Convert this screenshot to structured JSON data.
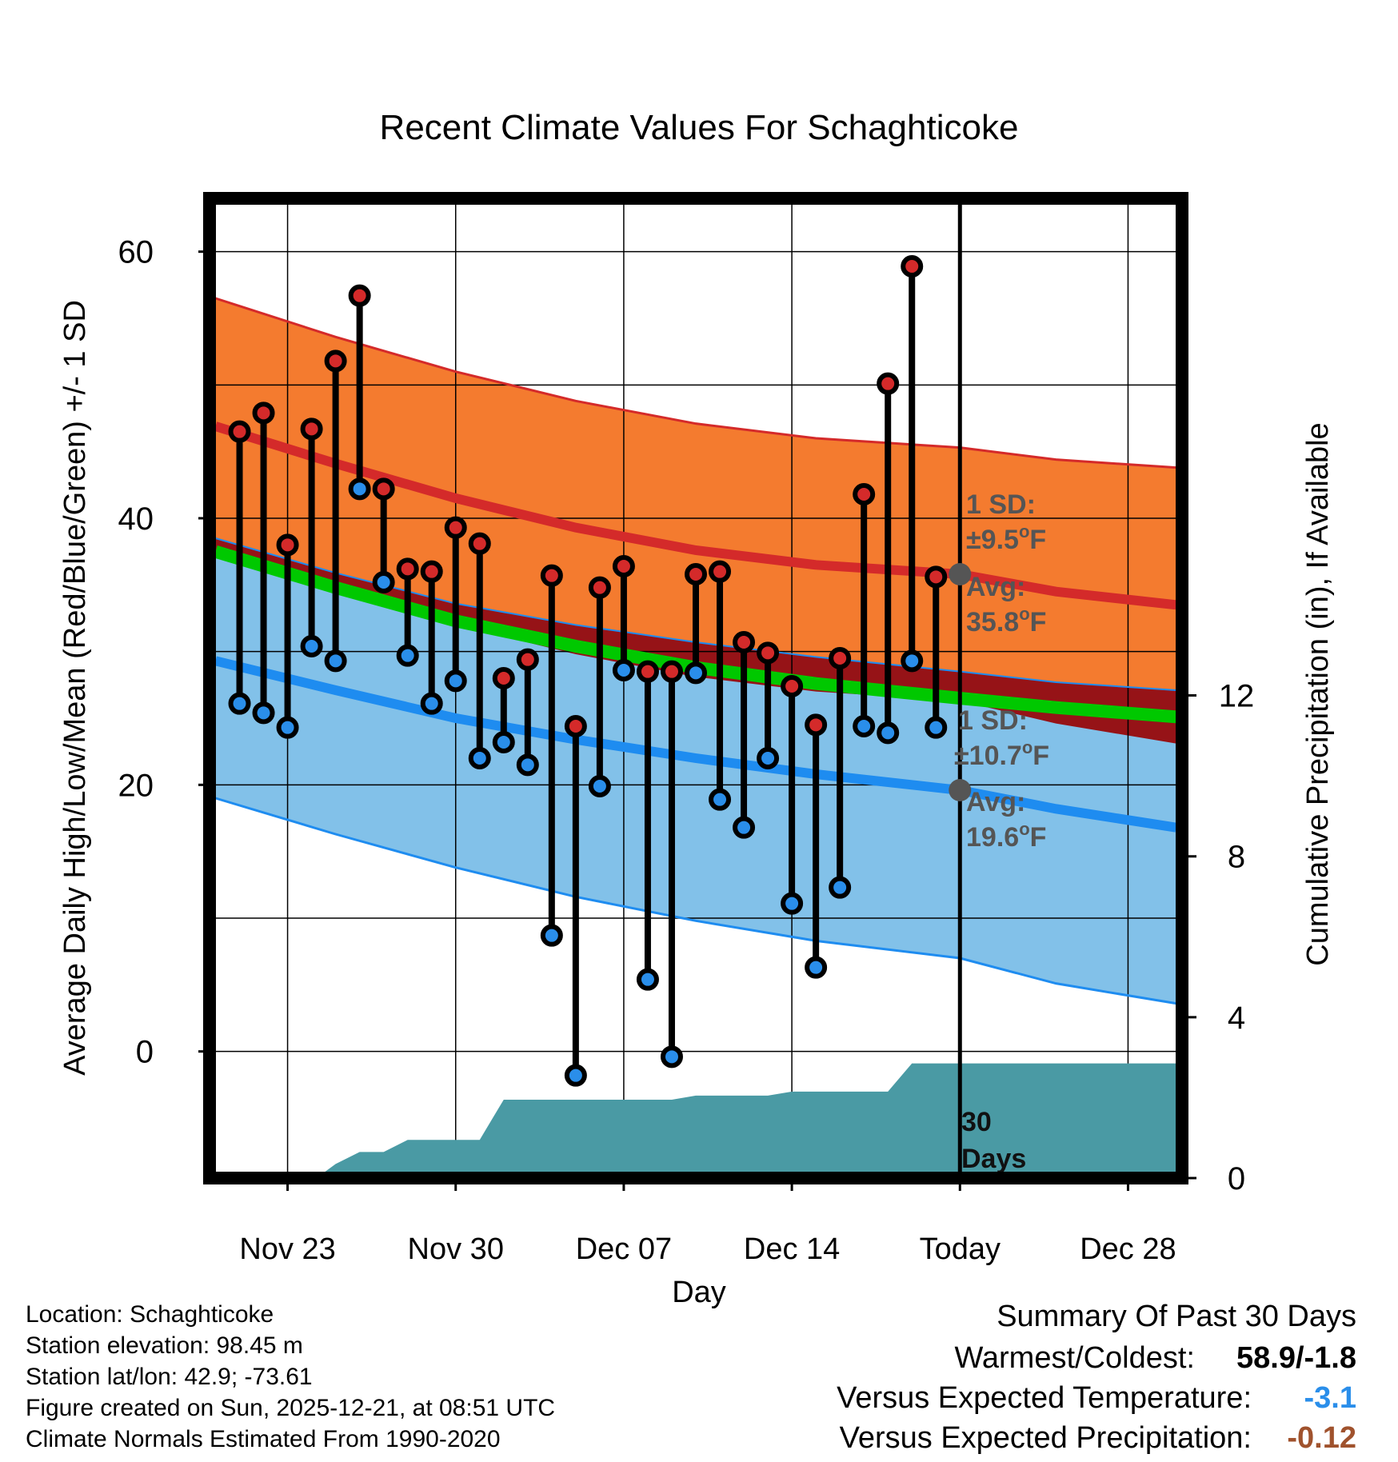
{
  "chart_data": {
    "type": "line",
    "title": "Recent Climate Values For Schaghticoke",
    "xlabel": "Day",
    "ylabel": "Average Daily High/Low/Mean (Red/Blue/Green) +/- 1 SD",
    "y2label": "Cumulative Precipitation (in), If Available",
    "ylim": [
      -9.5,
      64
    ],
    "y2lim": [
      0,
      24.36
    ],
    "xlim": [
      -0.25,
      40.25
    ],
    "yticks": [
      0,
      20,
      40,
      60
    ],
    "yticks_minor": [
      10,
      30,
      50
    ],
    "y2ticks": [
      0,
      4,
      8,
      12
    ],
    "xticks": [
      {
        "x": 3,
        "label": "Nov 23"
      },
      {
        "x": 10,
        "label": "Nov 30"
      },
      {
        "x": 17,
        "label": "Dec 07"
      },
      {
        "x": 24,
        "label": "Dec 14"
      },
      {
        "x": 31,
        "label": "Today"
      },
      {
        "x": 38,
        "label": "Dec 28"
      }
    ],
    "today_x": 31,
    "grid": true,
    "normals": {
      "x": [
        0,
        5,
        10,
        15,
        20,
        25,
        31,
        35,
        40
      ],
      "high_mean": [
        46.9,
        44.1,
        41.5,
        39.3,
        37.6,
        36.5,
        35.8,
        34.5,
        33.5
      ],
      "high_upper": [
        56.5,
        53.6,
        51.0,
        48.8,
        47.1,
        46.0,
        45.3,
        44.4,
        43.8
      ],
      "high_lower": [
        37.3,
        34.5,
        32.0,
        29.8,
        28.1,
        27.0,
        26.3,
        24.6,
        23.1
      ],
      "mean_line": [
        37.5,
        34.8,
        32.3,
        30.4,
        28.8,
        27.6,
        26.5,
        25.8,
        25.1
      ],
      "low_mean": [
        29.3,
        27.1,
        25.0,
        23.4,
        22.0,
        20.8,
        19.6,
        18.2,
        16.8
      ],
      "low_upper": [
        38.5,
        35.9,
        33.6,
        32.0,
        30.7,
        29.6,
        28.5,
        27.7,
        27.1
      ],
      "low_lower": [
        19.0,
        16.3,
        13.8,
        11.6,
        9.8,
        8.3,
        7.0,
        5.1,
        3.6
      ]
    },
    "sd_labels": {
      "high": {
        "sd": "1 SD:",
        "sd_val": "±9.5",
        "avg": "Avg:",
        "avg_val": "35.8",
        "unit": "F"
      },
      "low": {
        "sd": "1 SD:",
        "sd_val": "±10.7",
        "avg": "Avg:",
        "avg_val": "19.6",
        "unit": "F"
      }
    },
    "series": [
      {
        "name": "High",
        "color": "#d42a2a",
        "values": [
          46.5,
          47.9,
          38.0,
          46.7,
          51.8,
          56.7,
          42.2,
          36.2,
          36.0,
          39.3,
          38.1,
          28.0,
          29.4,
          35.7,
          24.4,
          34.8,
          36.4,
          28.5,
          28.5,
          35.8,
          36.0,
          30.7,
          29.9,
          27.4,
          24.5,
          29.5,
          41.8,
          50.1,
          58.9,
          35.6
        ]
      },
      {
        "name": "Low",
        "color": "#2a8eea",
        "values": [
          26.1,
          25.4,
          24.3,
          30.4,
          29.3,
          42.2,
          35.2,
          29.7,
          26.1,
          27.8,
          22.0,
          23.2,
          21.5,
          8.7,
          -1.8,
          19.9,
          28.6,
          5.4,
          -0.4,
          28.4,
          18.9,
          16.8,
          22.0,
          11.1,
          6.3,
          12.3,
          24.4,
          23.9,
          29.3,
          24.3
        ]
      }
    ],
    "day_x": [
      1,
      2,
      3,
      4,
      5,
      6,
      7,
      8,
      9,
      10,
      11,
      12,
      13,
      14,
      15,
      16,
      17,
      18,
      19,
      20,
      21,
      22,
      23,
      24,
      25,
      26,
      27,
      28,
      29,
      30
    ],
    "precip_label": "30 Days",
    "precip": {
      "x": [
        -0.25,
        4.2,
        5.0,
        6.0,
        7.0,
        8.0,
        9.0,
        10.0,
        11.0,
        12.0,
        13.0,
        14.0,
        15.0,
        16.0,
        17.0,
        18.0,
        19.0,
        20.0,
        21.0,
        22.0,
        23.0,
        24.0,
        25.0,
        26.0,
        27.0,
        28.0,
        29.0,
        30.0,
        31.0,
        40.25
      ],
      "values": [
        0,
        0,
        0.35,
        0.65,
        0.65,
        0.95,
        0.95,
        0.95,
        0.95,
        1.95,
        1.95,
        1.95,
        1.95,
        1.95,
        1.95,
        1.95,
        1.95,
        2.05,
        2.05,
        2.05,
        2.05,
        2.15,
        2.15,
        2.15,
        2.15,
        2.15,
        2.85,
        2.85,
        2.85,
        2.85
      ]
    }
  },
  "info": {
    "location": "Location: Schaghticoke",
    "elevation": "Station elevation: 98.45 m",
    "latlon": "Station lat/lon: 42.9; -73.61",
    "created": "Figure created on Sun, 2025-12-21, at 08:51 UTC",
    "normals": "Climate Normals Estimated From 1990-2020"
  },
  "summary": {
    "title": "Summary Of Past 30 Days",
    "warmest_label": "Warmest/Coldest:",
    "warmest_value": "58.9/-1.8",
    "temp_label": "Versus Expected Temperature:",
    "temp_value": "-3.1",
    "temp_color": "#2a8eea",
    "precip_label": "Versus Expected Precipitation:",
    "precip_value": "-0.12",
    "precip_color": "#a0522d"
  },
  "colors": {
    "high_band": "#f47b2f",
    "high_line": "#d42a2a",
    "low_band": "#82c1e9",
    "low_line": "#1e8cf0",
    "mean_line": "#00c800",
    "overlap": "#961317",
    "precip_fill": "#4a9aa4",
    "label_gray": "#555555"
  }
}
